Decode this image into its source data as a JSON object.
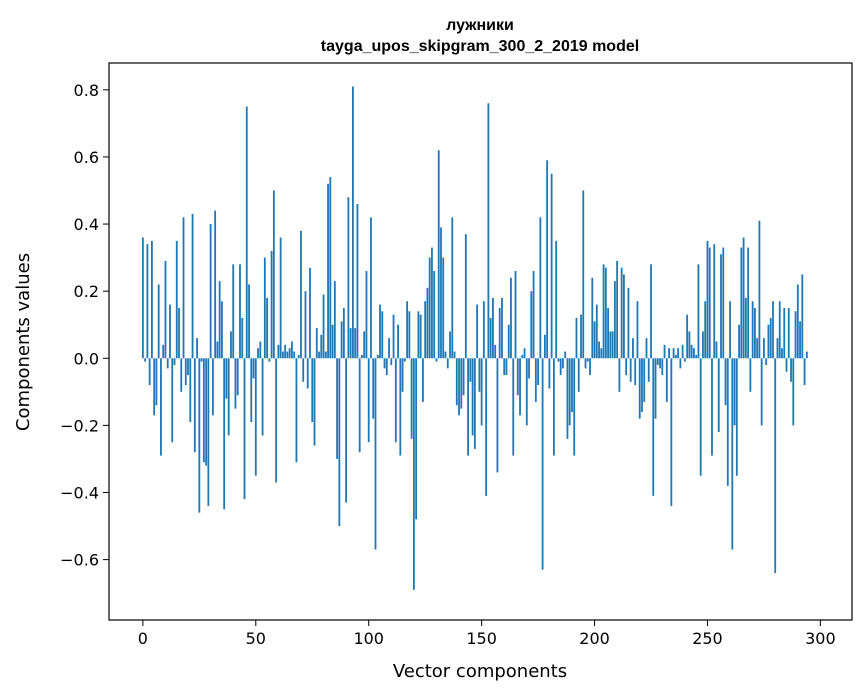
{
  "chart_data": {
    "type": "bar",
    "title": "лужники",
    "subtitle": "tayga_upos_skipgram_300_2_2019 model",
    "xlabel": "Vector components",
    "ylabel": "Components values",
    "xlim": [
      -15,
      314
    ],
    "ylim": [
      -0.78,
      0.88
    ],
    "xticks": [
      0,
      50,
      100,
      150,
      200,
      250,
      300
    ],
    "xtick_labels": [
      "0",
      "50",
      "100",
      "150",
      "200",
      "250",
      "300"
    ],
    "yticks": [
      -0.6,
      -0.4,
      -0.2,
      0.0,
      0.2,
      0.4,
      0.6,
      0.8
    ],
    "ytick_labels": [
      "−0.6",
      "−0.4",
      "−0.2",
      "0.0",
      "0.2",
      "0.4",
      "0.6",
      "0.8"
    ],
    "grid": false,
    "bar_color": "#1f77b4",
    "values": [
      0.36,
      -0.01,
      0.34,
      -0.08,
      0.35,
      -0.17,
      -0.14,
      0.22,
      -0.29,
      0.04,
      0.29,
      -0.03,
      0.16,
      -0.25,
      -0.02,
      0.35,
      0.15,
      -0.1,
      0.42,
      -0.08,
      -0.05,
      -0.19,
      0.43,
      -0.28,
      0.06,
      -0.46,
      -0.01,
      -0.31,
      -0.32,
      -0.44,
      0.4,
      -0.17,
      0.44,
      0.05,
      0.23,
      0.17,
      -0.45,
      -0.12,
      -0.23,
      0.08,
      0.28,
      -0.15,
      -0.11,
      0.28,
      0.12,
      -0.42,
      0.75,
      0.22,
      -0.19,
      -0.06,
      -0.35,
      0.03,
      0.05,
      -0.23,
      0.3,
      0.18,
      -0.01,
      0.32,
      0.5,
      -0.37,
      0.04,
      0.36,
      0.02,
      0.04,
      0.02,
      0.03,
      0.05,
      0.02,
      -0.31,
      0.01,
      0.38,
      -0.07,
      0.2,
      -0.09,
      0.27,
      -0.19,
      -0.26,
      0.09,
      0.02,
      0.07,
      0.19,
      0.02,
      0.52,
      0.54,
      0.1,
      0.23,
      -0.3,
      -0.5,
      0.11,
      0.15,
      -0.43,
      0.48,
      0.09,
      0.81,
      0.09,
      0.46,
      -0.28,
      0.01,
      0.08,
      0.26,
      -0.25,
      0.42,
      -0.18,
      -0.57,
      0.01,
      0.16,
      0.14,
      -0.03,
      -0.05,
      0.06,
      -0.02,
      0.13,
      -0.25,
      0.1,
      -0.29,
      -0.1,
      -0.01,
      0.17,
      0.14,
      -0.24,
      -0.69,
      -0.48,
      0.14,
      0.13,
      -0.13,
      0.17,
      0.21,
      0.3,
      0.33,
      0.26,
      -0.01,
      0.62,
      0.39,
      0.3,
      0.02,
      -0.03,
      0.08,
      0.42,
      0.02,
      -0.14,
      -0.17,
      -0.15,
      -0.11,
      0.37,
      -0.29,
      -0.07,
      -0.23,
      -0.27,
      0.16,
      -0.1,
      -0.2,
      0.17,
      -0.41,
      0.76,
      0.12,
      0.18,
      0.04,
      -0.34,
      0.15,
      0.18,
      -0.05,
      -0.05,
      0.1,
      0.24,
      -0.29,
      0.26,
      -0.11,
      -0.17,
      0.01,
      0.03,
      -0.2,
      -0.06,
      0.2,
      0.26,
      -0.13,
      -0.08,
      0.42,
      -0.63,
      0.07,
      0.59,
      -0.09,
      0.55,
      -0.29,
      0.35,
      -0.01,
      -0.05,
      -0.03,
      0.02,
      -0.24,
      -0.2,
      -0.16,
      -0.29,
      0.12,
      -0.1,
      0.13,
      0.5,
      -0.03,
      -0.01,
      -0.05,
      0.24,
      0.11,
      0.16,
      0.05,
      0.03,
      0.28,
      0.27,
      0.15,
      0.08,
      0.08,
      0.23,
      0.29,
      -0.1,
      0.27,
      0.25,
      -0.05,
      0.21,
      -0.07,
      0.06,
      -0.08,
      0.17,
      -0.18,
      -0.16,
      -0.13,
      0.06,
      -0.07,
      0.28,
      -0.41,
      -0.18,
      -0.02,
      -0.03,
      -0.05,
      0.04,
      -0.13,
      0.03,
      -0.44,
      0.03,
      0.01,
      0.03,
      -0.03,
      0.04,
      -0.01,
      0.13,
      0.08,
      0.04,
      0.03,
      0.01,
      0.28,
      -0.35,
      0.08,
      0.17,
      0.35,
      0.33,
      -0.29,
      0.34,
      0.05,
      -0.22,
      0.31,
      0.33,
      -0.14,
      -0.38,
      0.17,
      -0.57,
      -0.2,
      -0.35,
      0.1,
      0.33,
      0.36,
      0.18,
      0.33,
      -0.1,
      0.17,
      0.15,
      0.06,
      0.41,
      -0.2,
      0.06,
      -0.02,
      0.1,
      0.12,
      0.17,
      -0.64,
      0.06,
      0.17,
      0.03,
      0.15,
      -0.04,
      0.15,
      -0.07,
      -0.2,
      0.14,
      0.22,
      0.11,
      0.25,
      -0.08,
      0.02
    ]
  }
}
